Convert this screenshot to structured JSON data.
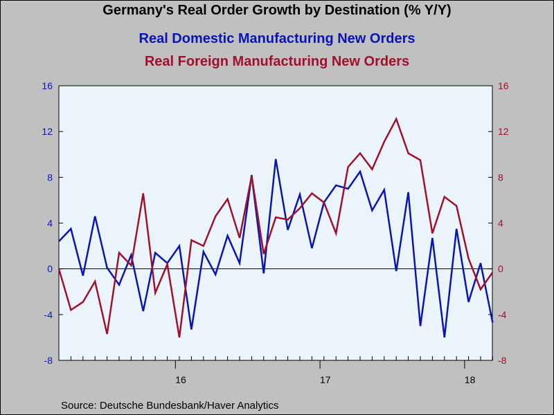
{
  "chart_data": {
    "type": "line",
    "title": "Germany's Real Order Growth by Destination (% Y/Y)",
    "source": "Source:  Deutsche Bundesbank/Haver Analytics",
    "x_ticks": [
      "16",
      "17",
      "18"
    ],
    "x_start": "2015-03",
    "ylim": [
      -8,
      16
    ],
    "y_ticks": [
      16,
      12,
      8,
      4,
      0,
      -4,
      -8
    ],
    "grid": false,
    "series": [
      {
        "name": "Real Domestic Manufacturing New Orders",
        "axis": "left",
        "color": "#0a14b4",
        "values": [
          2.4,
          3.5,
          -0.6,
          4.6,
          0.1,
          -1.4,
          1.2,
          -3.7,
          1.4,
          0.5,
          2.0,
          -5.3,
          1.5,
          -0.5,
          2.9,
          0.5,
          8.2,
          -0.4,
          9.6,
          3.4,
          6.5,
          1.8,
          5.8,
          7.3,
          7.0,
          8.5,
          5.1,
          6.9,
          -0.2,
          6.7,
          -5.0,
          2.7,
          -6.0,
          3.5,
          -2.9,
          0.5,
          -4.7
        ]
      },
      {
        "name": "Real Foreign Manufacturing New Orders",
        "axis": "right",
        "color": "#a0102c",
        "values": [
          0.0,
          -3.6,
          -2.9,
          -1.1,
          -5.7,
          1.4,
          0.3,
          6.6,
          -2.1,
          0.4,
          -6.0,
          2.5,
          2.0,
          4.6,
          6.1,
          2.7,
          8.1,
          1.3,
          4.5,
          4.3,
          5.3,
          6.6,
          5.8,
          3.1,
          8.9,
          10.1,
          8.7,
          11.1,
          13.1,
          10.1,
          9.5,
          3.1,
          6.3,
          5.5,
          0.9,
          -1.8,
          -0.3
        ]
      }
    ]
  }
}
